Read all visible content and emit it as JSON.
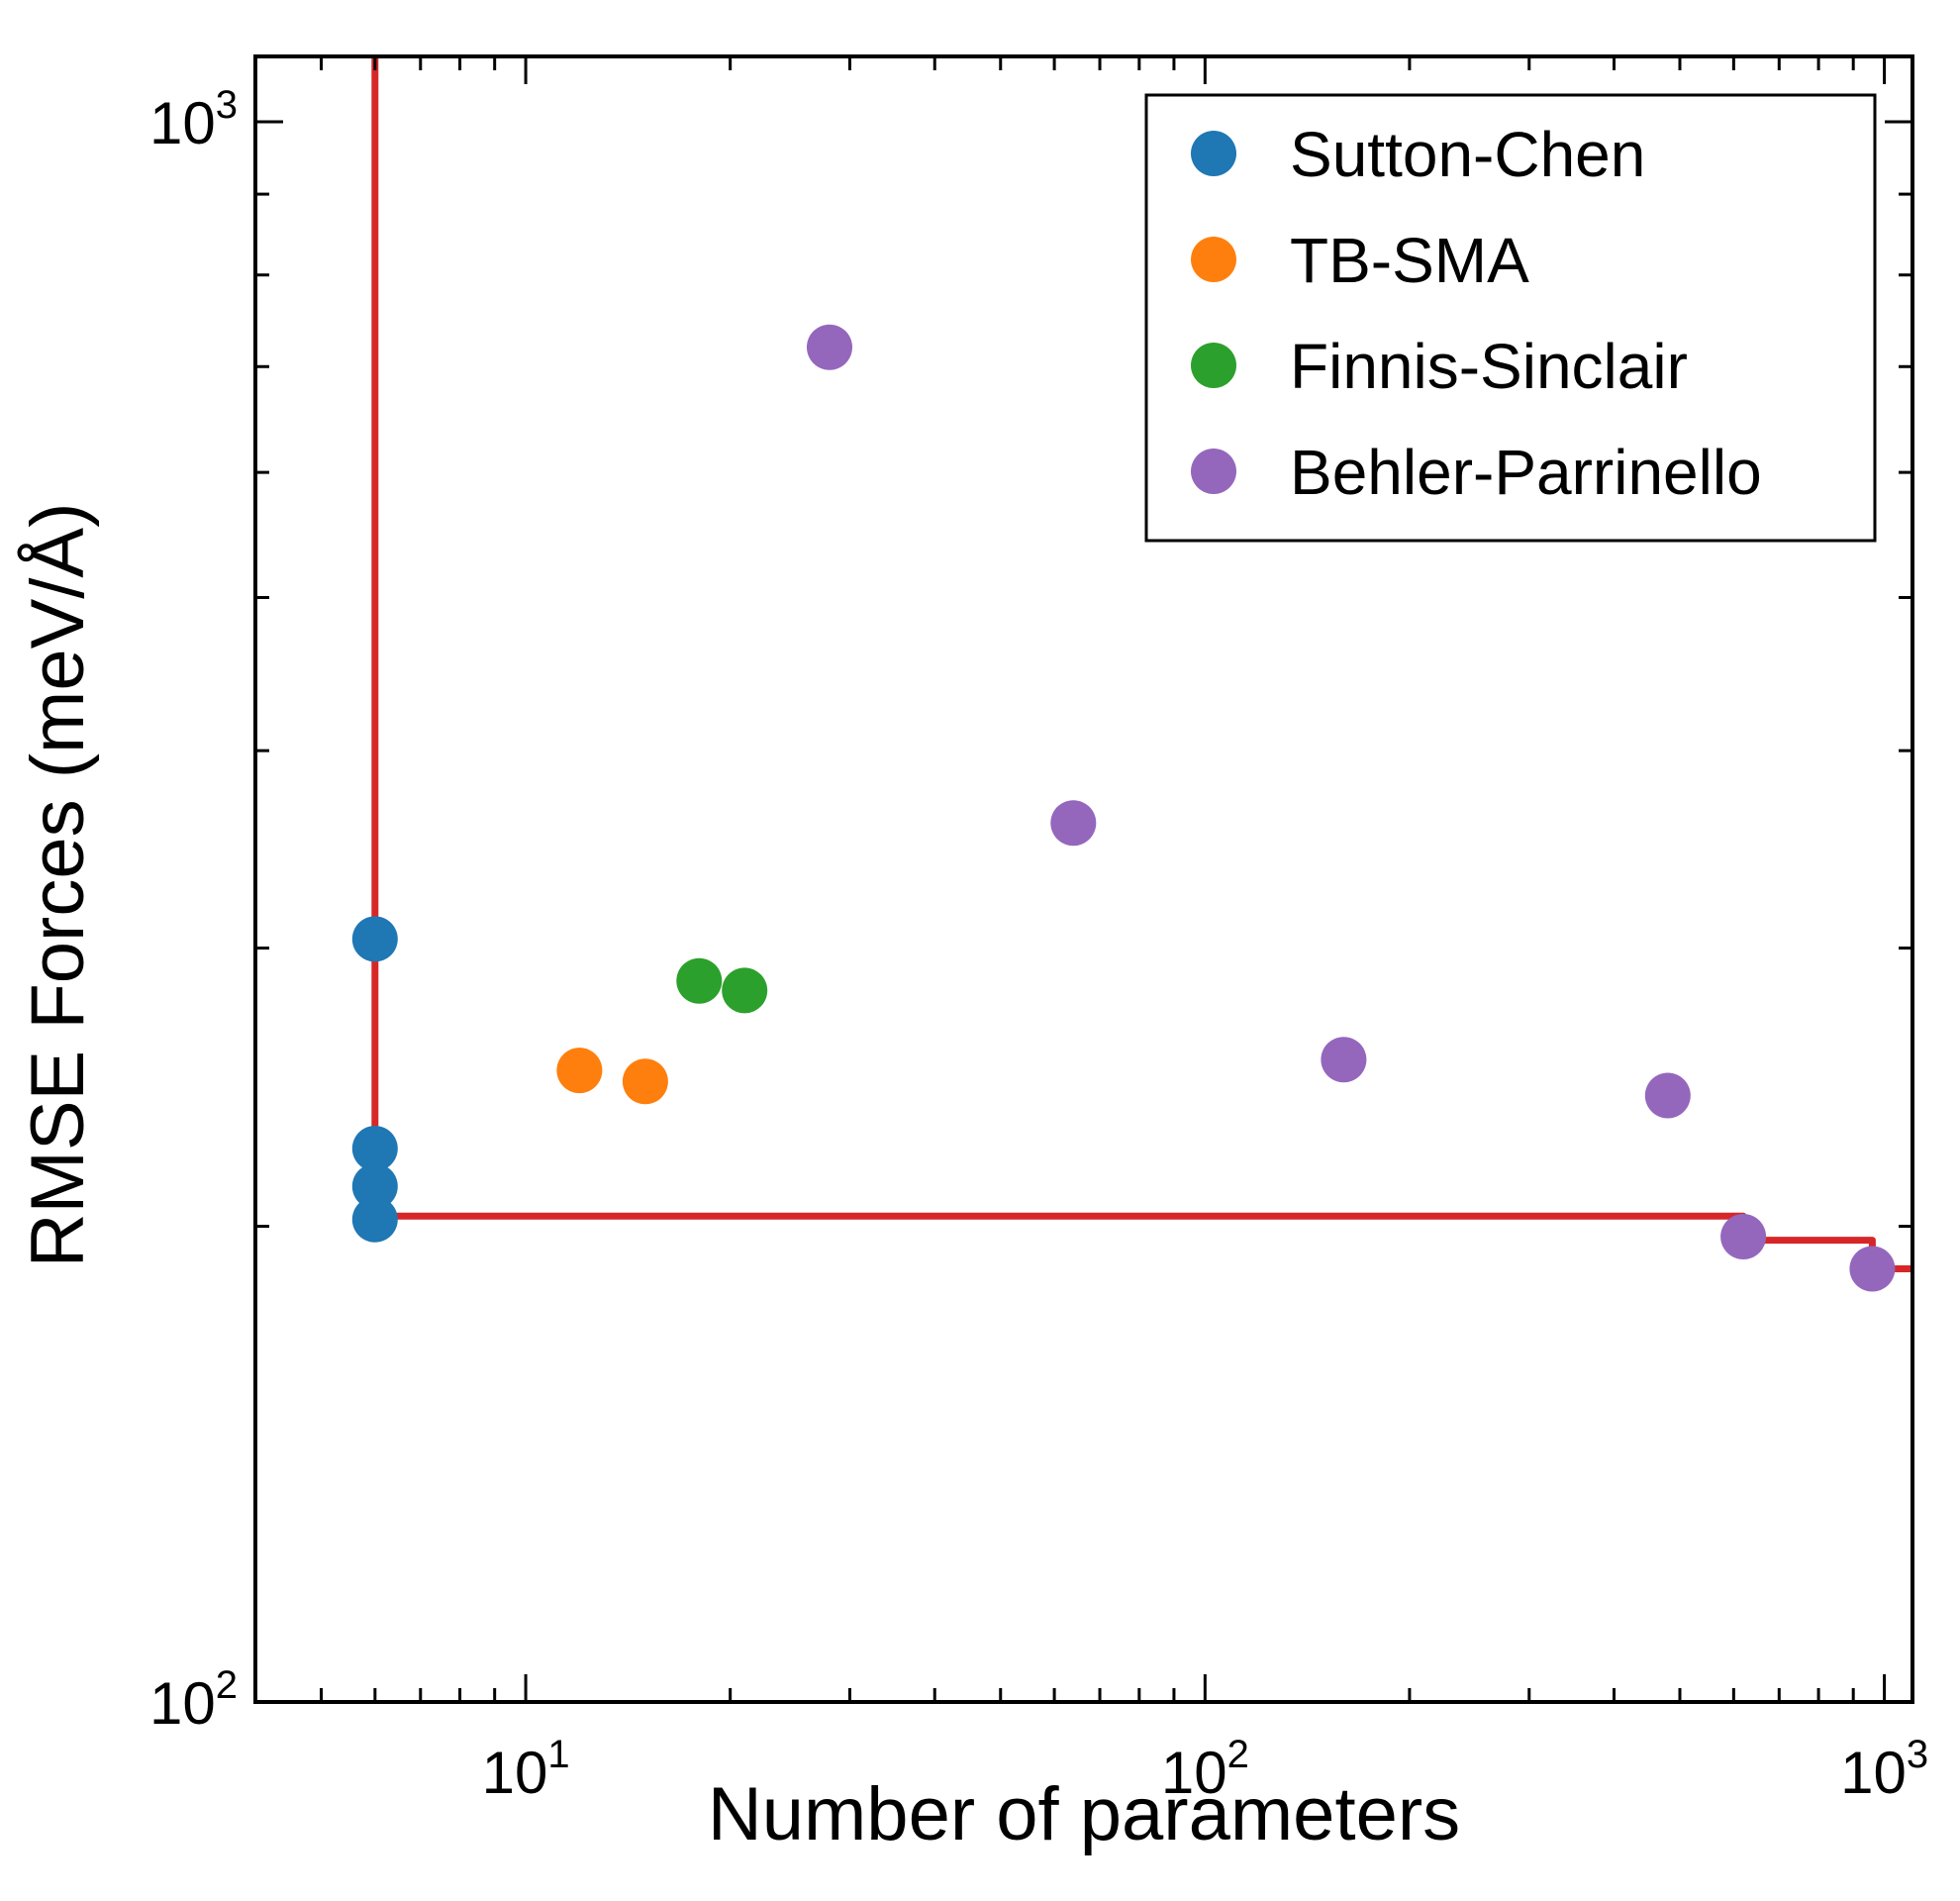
{
  "chart_data": {
    "type": "scatter",
    "title": "",
    "xlabel": "Number of parameters",
    "ylabel": "RMSE Forces (meV/Å)",
    "x_scale": "log",
    "y_scale": "log",
    "xlim": [
      4,
      1100
    ],
    "ylim": [
      100,
      1100
    ],
    "x_ticks": [
      {
        "value": 10,
        "base": "10",
        "exp": "1"
      },
      {
        "value": 100,
        "base": "10",
        "exp": "2"
      },
      {
        "value": 1000,
        "base": "10",
        "exp": "3"
      }
    ],
    "y_ticks": [
      {
        "value": 100,
        "base": "10",
        "exp": "2"
      },
      {
        "value": 1000,
        "base": "10",
        "exp": "3"
      }
    ],
    "legend_position": "top-right",
    "grid": false,
    "series": [
      {
        "name": "Sutton-Chen",
        "color": "#1f77b4",
        "points": [
          [
            6,
            304
          ],
          [
            6,
            224
          ],
          [
            6,
            212
          ],
          [
            6,
            202
          ]
        ]
      },
      {
        "name": "TB-SMA",
        "color": "#ff7f0e",
        "points": [
          [
            12,
            251
          ],
          [
            15,
            247
          ]
        ]
      },
      {
        "name": "Finnis-Sinclair",
        "color": "#2ca02c",
        "points": [
          [
            18,
            286
          ],
          [
            21,
            282
          ]
        ]
      },
      {
        "name": "Behler-Parrinello",
        "color": "#9467bd",
        "points": [
          [
            28,
            720
          ],
          [
            64,
            360
          ],
          [
            160,
            255
          ],
          [
            480,
            242
          ],
          [
            620,
            197
          ],
          [
            960,
            188
          ]
        ]
      }
    ],
    "pareto_front": {
      "color": "#d62728",
      "points": [
        [
          6,
          1100
        ],
        [
          6,
          203
        ],
        [
          620,
          203
        ],
        [
          620,
          196
        ],
        [
          960,
          196
        ],
        [
          960,
          188
        ],
        [
          1100,
          188
        ]
      ]
    }
  }
}
